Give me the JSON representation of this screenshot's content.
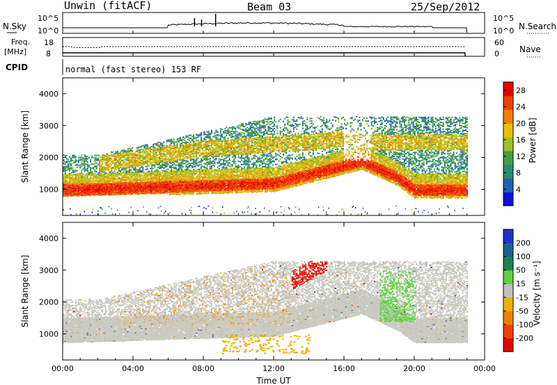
{
  "header": {
    "station": "Unwin (fitACF)",
    "beam": "Beam 03",
    "date": "25/Sep/2012"
  },
  "noise_panel": {
    "left_label": "N.Sky",
    "right_label": "N.Search",
    "left_ticks": [
      "10^5",
      "10^0"
    ],
    "right_ticks": [
      "10^5",
      "10^0"
    ]
  },
  "freq_panel": {
    "left_label_line1": "Freq.",
    "left_label_line2": "[MHz]",
    "right_label": "Nave",
    "left_ticks": [
      "18",
      "8"
    ],
    "right_ticks": [
      "60",
      "0"
    ]
  },
  "cpid": {
    "label": "CPID",
    "value": "normal (fast stereo) 153 RF"
  },
  "colors": {
    "power_scale": [
      "#1010e0",
      "#2060b0",
      "#2a8a6e",
      "#40a040",
      "#a0c020",
      "#f0c000",
      "#f08000",
      "#f04000",
      "#e80000"
    ],
    "velocity_scale": [
      "#2030d0",
      "#206090",
      "#208050",
      "#60d040",
      "#c0c0c0",
      "#f0b000",
      "#f08000",
      "#f04000",
      "#e80000"
    ],
    "ground_scatter": "#c8c8c0"
  },
  "chart_data": [
    {
      "type": "heatmap",
      "name": "power",
      "ylabel": "Slant Range [km]",
      "y_ticks": [
        1000,
        2000,
        3000,
        4000
      ],
      "ylim": [
        180,
        4500
      ],
      "x_ticks": [
        "00:00",
        "04:00",
        "08:00",
        "12:00",
        "16:00",
        "20:00",
        "00:00"
      ],
      "xlim_hours": [
        0,
        24
      ],
      "data_end_hours": 23,
      "colorbar": {
        "label": "Power [dB]",
        "ticks": [
          4,
          8,
          12,
          16,
          20,
          24,
          28
        ],
        "range": [
          0,
          30
        ]
      },
      "features": [
        {
          "desc": "main band",
          "x_hours": [
            0,
            12,
            17,
            19,
            20,
            23
          ],
          "range_km": [
            1000,
            1200,
            1900,
            1400,
            1000,
            1000
          ]
        },
        {
          "desc": "upper band",
          "x_hours": [
            2,
            8,
            14,
            16,
            18
          ],
          "range_km": [
            1800,
            2300,
            2500,
            2600,
            2500
          ]
        }
      ]
    },
    {
      "type": "heatmap",
      "name": "velocity",
      "ylabel": "Slant Range [km]",
      "xlabel": "Time UT",
      "y_ticks": [
        1000,
        2000,
        3000,
        4000
      ],
      "ylim": [
        180,
        4500
      ],
      "x_ticks": [
        "00:00",
        "04:00",
        "08:00",
        "12:00",
        "16:00",
        "20:00",
        "00:00"
      ],
      "xlim_hours": [
        0,
        24
      ],
      "colorbar": {
        "label": "Velocity [m s⁻¹]",
        "ticks": [
          200,
          100,
          50,
          15,
          -15,
          -50,
          -100,
          -200
        ]
      },
      "features": [
        {
          "desc": "ground scatter",
          "velocity": 0
        },
        {
          "desc": "strong negative velocity patch",
          "x_hours": [
            13,
            15
          ],
          "range_km": [
            2700,
            3300
          ],
          "velocity": -200
        },
        {
          "desc": "positive velocity stripe",
          "x_hours": [
            18,
            20
          ],
          "range_km": [
            1400,
            3000
          ],
          "velocity": 30
        }
      ]
    }
  ]
}
